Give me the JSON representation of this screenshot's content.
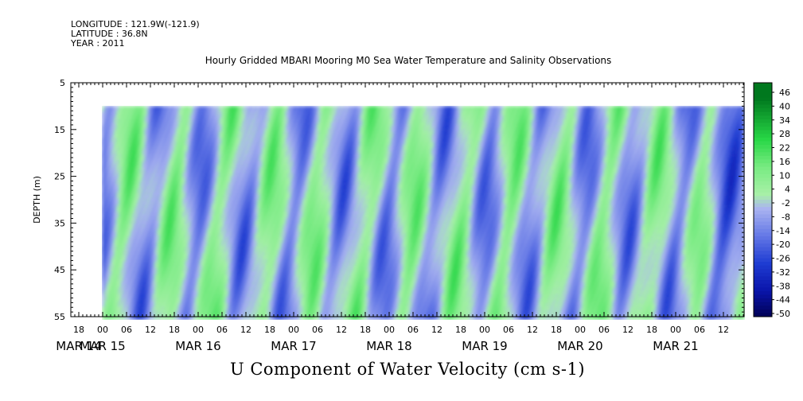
{
  "header": {
    "longitude": "LONGITUDE : 121.9W(-121.9)",
    "latitude": "LATITUDE : 36.8N",
    "year": "YEAR : 2011"
  },
  "chart_data": {
    "type": "heatmap",
    "title": "Hourly Gridded MBARI Mooring M0 Sea Water Temperature and Salinity Observations",
    "xlabel": "U Component of Water Velocity (cm s-1)",
    "ylabel": "DEPTH (m)",
    "ylim": [
      5,
      55
    ],
    "y_ticks": [
      "5",
      "15",
      "25",
      "35",
      "45",
      "55"
    ],
    "x_hour_ticks": [
      "18",
      "00",
      "06",
      "12",
      "18",
      "00",
      "06",
      "12",
      "18",
      "00",
      "06",
      "12",
      "18",
      "00",
      "06",
      "12",
      "18",
      "00",
      "06",
      "12",
      "18",
      "00",
      "06",
      "12",
      "18",
      "00",
      "06",
      "12"
    ],
    "x_date_labels": [
      "MAR 14",
      "MAR 15",
      "MAR 16",
      "MAR 17",
      "MAR 18",
      "MAR 19",
      "MAR 20",
      "MAR 21"
    ],
    "colorbar_labels": [
      "46",
      "40",
      "34",
      "28",
      "22",
      "16",
      "10",
      "4",
      "-2",
      "-8",
      "-14",
      "-20",
      "-26",
      "-32",
      "-38",
      "-44",
      "-50"
    ],
    "colors": {
      "green_strong": "#00d23c",
      "green_light": "#a8f0a8",
      "blue_light": "#aab4f0",
      "blue_strong": "#1e3cd2",
      "blue_dark": "#000050"
    }
  }
}
